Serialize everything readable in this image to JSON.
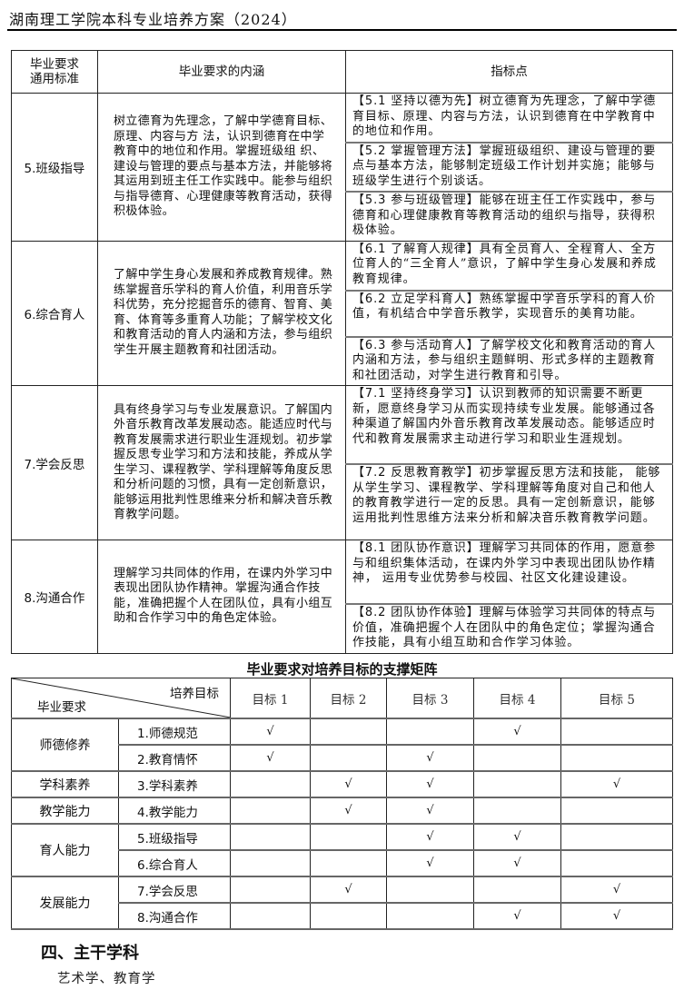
{
  "header": {
    "title": "湖南理工学院本科专业培养方案（2024）"
  },
  "table1": {
    "headers": [
      "毕业要求\n通用标准",
      "毕业要求的内涵",
      "指标点"
    ],
    "rows": [
      {
        "standard": "5.班级指导",
        "content": "树立德育为先理念，了解中学德育目标、原理、内容与方 法，认识到德育在中学教育中的地位和作用。掌握班级组 织、建设与管理的要点与基本方法，并能够将其运用到班主任工作实践中。能参与组织与指导德育、心理健康等教育活动，获得积极体验。",
        "indicators": [
          {
            "title": "【5.1 坚持以德为先】",
            "text": "树立德育为先理念，了解中学德育目标、原理、内容与方法，认识到德育在中学教育中的地位和作用。"
          },
          {
            "title": "【5.2 掌握管理方法】",
            "text": "掌握班级组织、建设与管理的要点与基本方法，能够制定班级工作计划并实施；能够与班级学生进行个别谈话。"
          },
          {
            "title": "【5.3 参与班级管理】",
            "text": "能够在班主任工作实践中，参与德育和心理健康教育等教育活动的组织与指导，获得积极体验。"
          }
        ]
      },
      {
        "standard": "6.综合育人",
        "content": "了解中学生身心发展和养成教育规律。熟练掌握音乐学科的育人价值，利用音乐学科优势，充分挖掘音乐的德育、智育、美育、体育等多重育人功能；了解学校文化和教育活动的育人内涵和方法，参与组织学生开展主题教育和社团活动。",
        "indicators": [
          {
            "title": "【6.1 了解育人规律】",
            "text": "具有全员育人、全程育人、全方位育人的“三全育人”意识，了解中学生身心发展和养成教育规律。"
          },
          {
            "title": "【6.2 立足学科育人】",
            "text": "熟练掌握中学音乐学科的育人价值，有机结合中学音乐教学，实现音乐的美育功能。"
          },
          {
            "title": "【6.3 参与活动育人】",
            "text": "了解学校文化和教育活动的育人内涵和方法，参与组织主题鲜明、形式多样的主题教育和社团活动，对学生进行教育和引导。"
          }
        ]
      },
      {
        "standard": "7.学会反思",
        "content": "具有终身学习与专业发展意识。了解国内外音乐教育改革发展动态。能适应时代与教育发展需求进行职业生涯规划。初步掌握反思专业学习和方法和技能，养成从学生学习、课程教学、学科理解等角度反思和分析问题的习惯，具有一定创新意识，能够运用批判性思维来分析和解决音乐教育教学问题。",
        "indicators": [
          {
            "title": "【7.1 坚持终身学习】",
            "text": "认识到教师的知识需要不断更新，愿意终身学习从而实现持续专业发展。能够通过各种渠道了解国内外音乐教育改革发展动态。能够适应时代和教育发展需求主动进行学习和职业生涯规划。"
          },
          {
            "title": "【7.2 反思教育教学】",
            "text": "初步掌握反思方法和技能， 能够从学生学习、课程教学、学科理解等角度对自己和他人的教育教学进行一定的反思。具有一定创新意识，能够运用批判性思维方法来分析和解决音乐教育教学问题。"
          }
        ]
      },
      {
        "standard": "8.沟通合作",
        "content": "理解学习共同体的作用，在课内外学习中表现出团队协作精神。掌握沟通合作技能，准确把握个人在团队位，具有小组互助和合作学习中的角色定体验。",
        "indicators": [
          {
            "title": "【8.1 团队协作意识】",
            "text": "理解学习共同体的作用，愿意参与和组织集体活动，在课内外学习中表现出团队协作精神， 运用专业优势参与校园、社区文化建设建设。"
          },
          {
            "title": "【8.2 团队协作体验】",
            "text": "理解与体验学习共同体的特点与价值，准确把握个人在团队中的角色定位；掌握沟通合作技能，具有小组互助和合作学习体验。"
          }
        ]
      }
    ]
  },
  "matrix": {
    "title": "毕业要求对培养目标的支撑矩阵",
    "corner_top": "培养目标",
    "corner_bottom": "毕业要求",
    "goals": [
      "目标 1",
      "目标 2",
      "目标 3",
      "目标 4",
      "目标 5"
    ],
    "check": "√",
    "groups": [
      {
        "name": "师德修养",
        "rows": [
          {
            "req": "1.师德规范",
            "marks": [
              1,
              0,
              0,
              1,
              0
            ]
          },
          {
            "req": "2.教育情怀",
            "marks": [
              1,
              0,
              1,
              0,
              0
            ]
          }
        ]
      },
      {
        "name": "学科素养",
        "rows": [
          {
            "req": "3.学科素养",
            "marks": [
              0,
              1,
              1,
              0,
              1
            ]
          }
        ]
      },
      {
        "name": "教学能力",
        "rows": [
          {
            "req": "4.教学能力",
            "marks": [
              0,
              1,
              1,
              0,
              0
            ]
          }
        ]
      },
      {
        "name": "育人能力",
        "rows": [
          {
            "req": "5.班级指导",
            "marks": [
              0,
              0,
              1,
              1,
              0
            ]
          },
          {
            "req": "6.综合育人",
            "marks": [
              0,
              0,
              1,
              1,
              0
            ]
          }
        ]
      },
      {
        "name": "发展能力",
        "rows": [
          {
            "req": "7.学会反思",
            "marks": [
              0,
              1,
              0,
              0,
              1
            ]
          },
          {
            "req": "8.沟通合作",
            "marks": [
              0,
              0,
              0,
              1,
              1
            ]
          }
        ]
      }
    ]
  },
  "section4": {
    "heading": "四、主干学科",
    "body": "艺术学、教育学"
  }
}
